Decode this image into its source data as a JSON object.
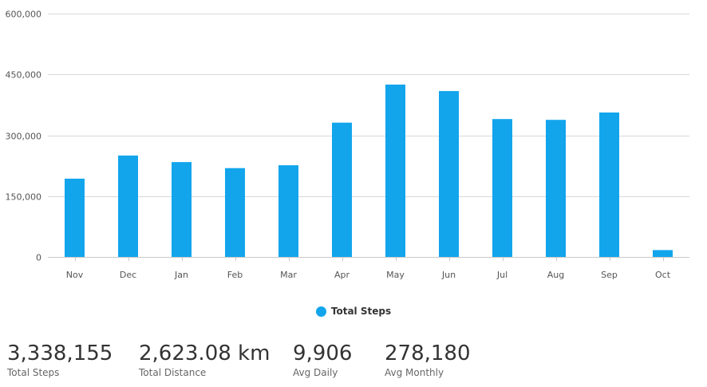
{
  "chart_data": {
    "type": "bar",
    "categories": [
      "Nov",
      "Dec",
      "Jan",
      "Feb",
      "Mar",
      "Apr",
      "May",
      "Jun",
      "Jul",
      "Aug",
      "Sep",
      "Oct"
    ],
    "series": [
      {
        "name": "Total Steps",
        "color": "#12A5EC",
        "values": [
          193000,
          250000,
          234000,
          219000,
          226000,
          331000,
          425000,
          409000,
          340000,
          338000,
          356000,
          17000
        ]
      }
    ],
    "y_ticks": [
      0,
      150000,
      300000,
      450000,
      600000
    ],
    "y_tick_labels": [
      "0",
      "150,000",
      "300,000",
      "450,000",
      "600,000"
    ],
    "ylim": [
      0,
      600000
    ],
    "grid": true,
    "legend_position": "bottom-center"
  },
  "legend": {
    "items": [
      {
        "label": "Total Steps",
        "color": "#12A5EC"
      }
    ]
  },
  "stats": [
    {
      "value": "3,338,155",
      "label": "Total Steps"
    },
    {
      "value": "2,623.08 km",
      "label": "Total Distance"
    },
    {
      "value": "9,906",
      "label": "Avg Daily"
    },
    {
      "value": "278,180",
      "label": "Avg Monthly"
    }
  ],
  "colors": {
    "bar": "#12A5EC",
    "grid": "#d8d8d8",
    "axis_text": "#555555"
  }
}
